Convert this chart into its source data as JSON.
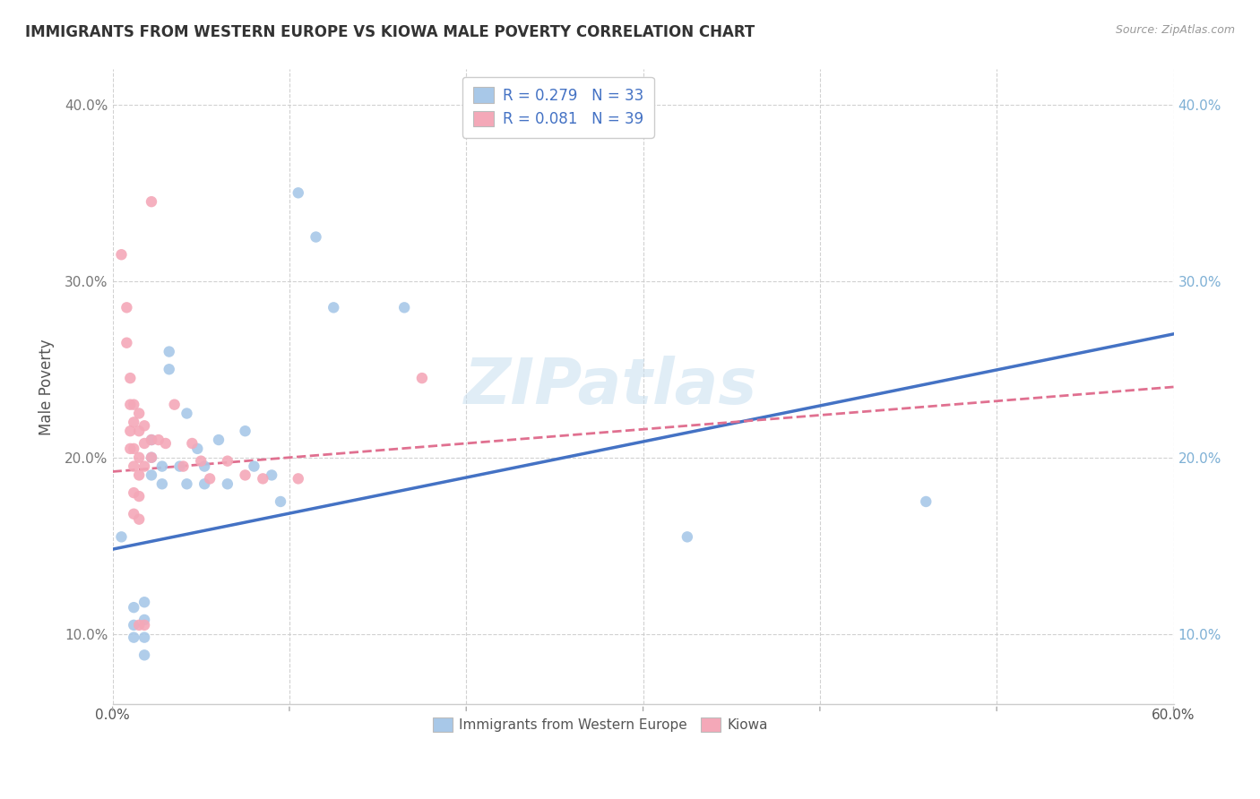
{
  "title": "IMMIGRANTS FROM WESTERN EUROPE VS KIOWA MALE POVERTY CORRELATION CHART",
  "source_text": "Source: ZipAtlas.com",
  "ylabel": "Male Poverty",
  "xlim": [
    0.0,
    0.6
  ],
  "ylim": [
    0.06,
    0.42
  ],
  "xticks": [
    0.0,
    0.1,
    0.2,
    0.3,
    0.4,
    0.5,
    0.6
  ],
  "xticklabels_show": [
    "0.0%",
    "",
    "",
    "",
    "",
    "",
    "60.0%"
  ],
  "yticks": [
    0.1,
    0.2,
    0.3,
    0.4
  ],
  "yticklabels": [
    "10.0%",
    "20.0%",
    "30.0%",
    "40.0%"
  ],
  "legend_r1": "R = 0.279   N = 33",
  "legend_r2": "R = 0.081   N = 39",
  "blue_color": "#A8C8E8",
  "pink_color": "#F4A8B8",
  "blue_line_color": "#4472C4",
  "pink_line_color": "#E07090",
  "watermark": "ZIPatlas",
  "blue_scatter": [
    [
      0.005,
      0.155
    ],
    [
      0.012,
      0.115
    ],
    [
      0.012,
      0.105
    ],
    [
      0.012,
      0.098
    ],
    [
      0.018,
      0.118
    ],
    [
      0.018,
      0.108
    ],
    [
      0.018,
      0.098
    ],
    [
      0.018,
      0.088
    ],
    [
      0.022,
      0.21
    ],
    [
      0.022,
      0.2
    ],
    [
      0.022,
      0.19
    ],
    [
      0.028,
      0.195
    ],
    [
      0.028,
      0.185
    ],
    [
      0.032,
      0.26
    ],
    [
      0.032,
      0.25
    ],
    [
      0.038,
      0.195
    ],
    [
      0.042,
      0.225
    ],
    [
      0.042,
      0.185
    ],
    [
      0.048,
      0.205
    ],
    [
      0.052,
      0.195
    ],
    [
      0.052,
      0.185
    ],
    [
      0.06,
      0.21
    ],
    [
      0.065,
      0.185
    ],
    [
      0.075,
      0.215
    ],
    [
      0.08,
      0.195
    ],
    [
      0.09,
      0.19
    ],
    [
      0.095,
      0.175
    ],
    [
      0.105,
      0.35
    ],
    [
      0.115,
      0.325
    ],
    [
      0.125,
      0.285
    ],
    [
      0.165,
      0.285
    ],
    [
      0.325,
      0.155
    ],
    [
      0.46,
      0.175
    ]
  ],
  "pink_scatter": [
    [
      0.005,
      0.315
    ],
    [
      0.008,
      0.285
    ],
    [
      0.008,
      0.265
    ],
    [
      0.01,
      0.245
    ],
    [
      0.01,
      0.23
    ],
    [
      0.01,
      0.215
    ],
    [
      0.01,
      0.205
    ],
    [
      0.012,
      0.23
    ],
    [
      0.012,
      0.22
    ],
    [
      0.012,
      0.205
    ],
    [
      0.012,
      0.195
    ],
    [
      0.012,
      0.18
    ],
    [
      0.012,
      0.168
    ],
    [
      0.015,
      0.225
    ],
    [
      0.015,
      0.215
    ],
    [
      0.015,
      0.2
    ],
    [
      0.015,
      0.19
    ],
    [
      0.015,
      0.178
    ],
    [
      0.015,
      0.165
    ],
    [
      0.015,
      0.105
    ],
    [
      0.018,
      0.218
    ],
    [
      0.018,
      0.208
    ],
    [
      0.018,
      0.195
    ],
    [
      0.018,
      0.105
    ],
    [
      0.022,
      0.345
    ],
    [
      0.022,
      0.21
    ],
    [
      0.022,
      0.2
    ],
    [
      0.026,
      0.21
    ],
    [
      0.03,
      0.208
    ],
    [
      0.035,
      0.23
    ],
    [
      0.04,
      0.195
    ],
    [
      0.045,
      0.208
    ],
    [
      0.05,
      0.198
    ],
    [
      0.055,
      0.188
    ],
    [
      0.065,
      0.198
    ],
    [
      0.075,
      0.19
    ],
    [
      0.085,
      0.188
    ],
    [
      0.105,
      0.188
    ],
    [
      0.175,
      0.245
    ]
  ],
  "blue_trend_x": [
    0.0,
    0.6
  ],
  "blue_trend_y": [
    0.148,
    0.27
  ],
  "pink_trend_x": [
    0.0,
    0.6
  ],
  "pink_trend_y": [
    0.192,
    0.24
  ],
  "title_fontsize": 12,
  "grid_color": "#CCCCCC",
  "background_color": "#FFFFFF",
  "right_tick_color": "#7EB0D5"
}
